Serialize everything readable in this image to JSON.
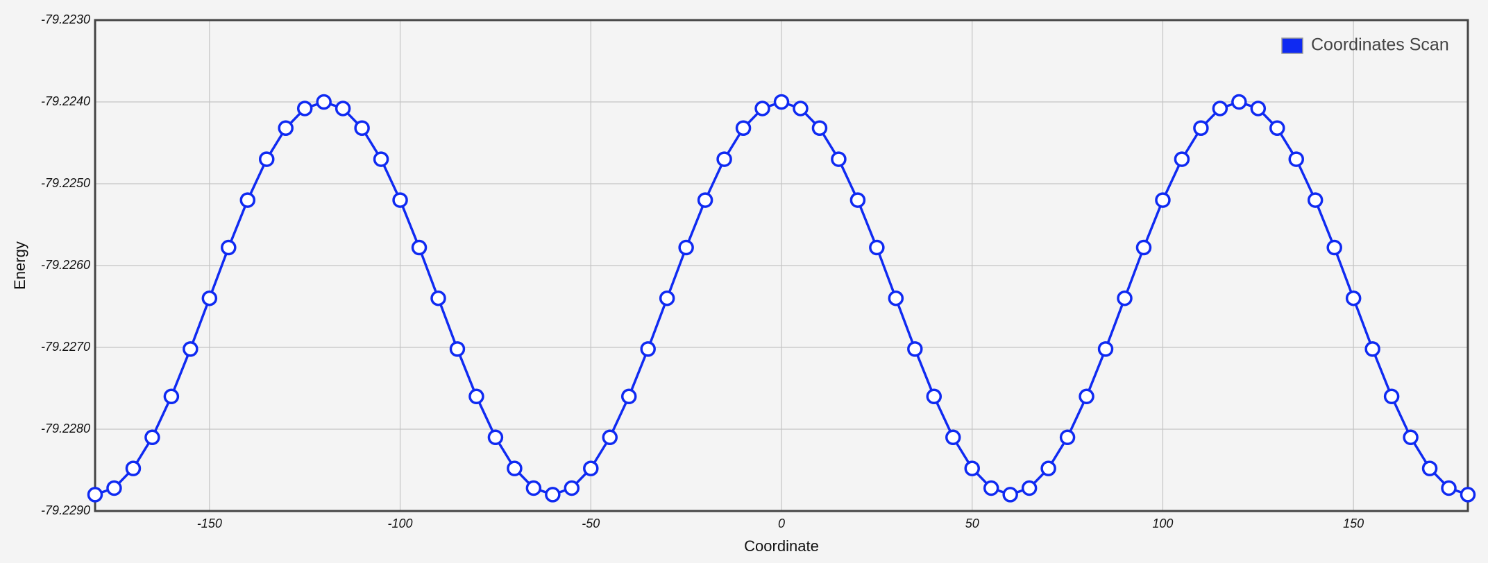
{
  "chart_data": {
    "type": "line",
    "x_label": "Coordinate",
    "y_label": "Energy",
    "x": [
      -180,
      -175,
      -170,
      -165,
      -160,
      -155,
      -150,
      -145,
      -140,
      -135,
      -130,
      -125,
      -120,
      -115,
      -110,
      -105,
      -100,
      -95,
      -90,
      -85,
      -80,
      -75,
      -70,
      -65,
      -60,
      -55,
      -50,
      -45,
      -40,
      -35,
      -30,
      -25,
      -20,
      -15,
      -10,
      -5,
      0,
      5,
      10,
      15,
      20,
      25,
      30,
      35,
      40,
      45,
      50,
      55,
      60,
      65,
      70,
      75,
      80,
      85,
      90,
      95,
      100,
      105,
      110,
      115,
      120,
      125,
      130,
      135,
      140,
      145,
      150,
      155,
      160,
      165,
      170,
      175,
      180
    ],
    "series": [
      {
        "name": "Coordinates Scan",
        "color": "#0f2af2",
        "values": [
          -79.2288,
          -79.22872,
          -79.22848,
          -79.2281,
          -79.2276,
          -79.22702,
          -79.2264,
          -79.22578,
          -79.2252,
          -79.2247,
          -79.22432,
          -79.22408,
          -79.224,
          -79.22408,
          -79.22432,
          -79.2247,
          -79.2252,
          -79.22578,
          -79.2264,
          -79.22702,
          -79.2276,
          -79.2281,
          -79.22848,
          -79.22872,
          -79.2288,
          -79.22872,
          -79.22848,
          -79.2281,
          -79.2276,
          -79.22702,
          -79.2264,
          -79.22578,
          -79.2252,
          -79.2247,
          -79.22432,
          -79.22408,
          -79.224,
          -79.22408,
          -79.22432,
          -79.2247,
          -79.2252,
          -79.22578,
          -79.2264,
          -79.22702,
          -79.2276,
          -79.2281,
          -79.22848,
          -79.22872,
          -79.2288,
          -79.22872,
          -79.22848,
          -79.2281,
          -79.2276,
          -79.22702,
          -79.2264,
          -79.22578,
          -79.2252,
          -79.2247,
          -79.22432,
          -79.22408,
          -79.224,
          -79.22408,
          -79.22432,
          -79.2247,
          -79.2252,
          -79.22578,
          -79.2264,
          -79.22702,
          -79.2276,
          -79.2281,
          -79.22848,
          -79.22872,
          -79.2288
        ]
      }
    ],
    "xlim": [
      -180,
      180
    ],
    "xticks": [
      -150,
      -100,
      -50,
      0,
      50,
      100,
      150
    ],
    "ylim": [
      -79.229,
      -79.223
    ],
    "yticks": [
      {
        "value": -79.229,
        "label": "-79.2290"
      },
      {
        "value": -79.228,
        "label": "-79.2280"
      },
      {
        "value": -79.227,
        "label": "-79.2270"
      },
      {
        "value": -79.226,
        "label": "-79.2260"
      },
      {
        "value": -79.225,
        "label": "-79.2250"
      },
      {
        "value": -79.224,
        "label": "-79.2240"
      },
      {
        "value": -79.223,
        "label": "-79.2230"
      }
    ],
    "grid": true,
    "legend": "upper right",
    "markers": true
  }
}
